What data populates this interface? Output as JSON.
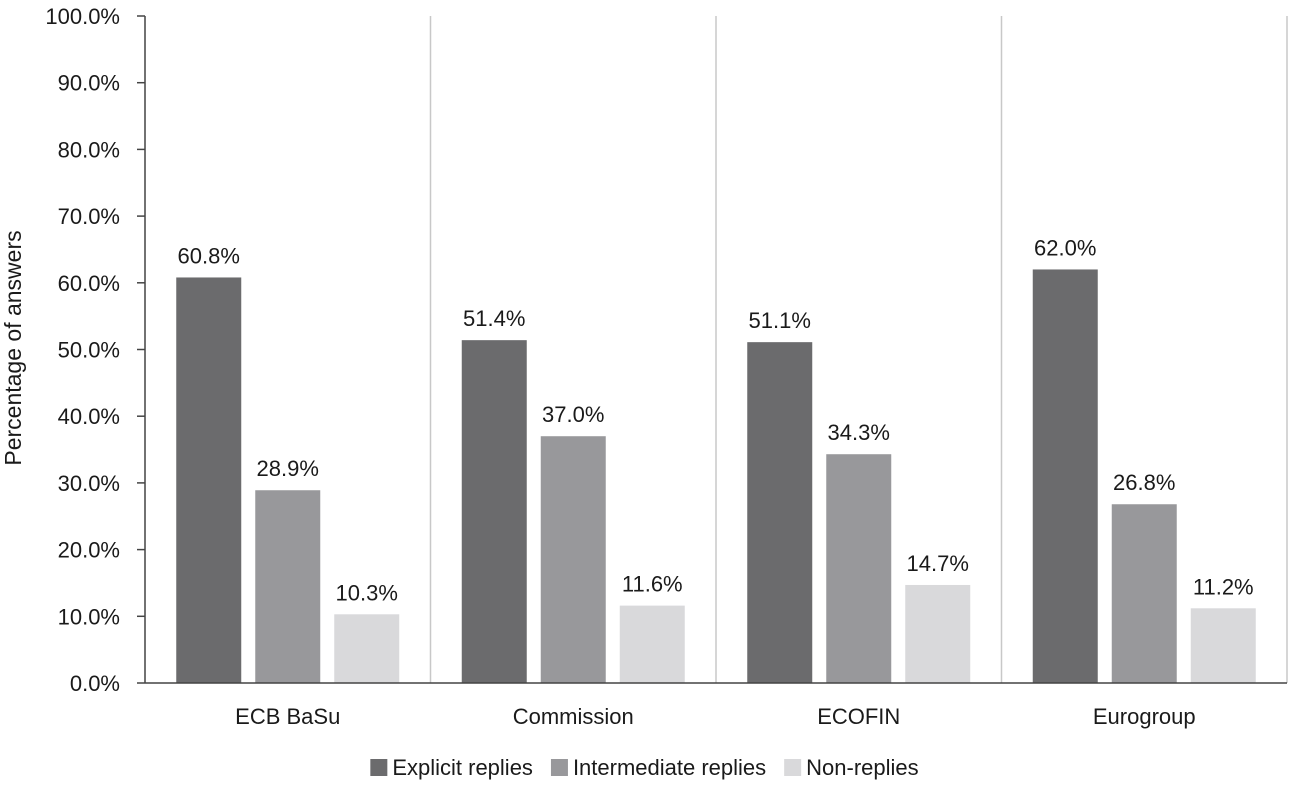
{
  "chart_data": {
    "type": "bar",
    "categories": [
      "ECB BaSu",
      "Commission",
      "ECOFIN",
      "Eurogroup"
    ],
    "series": [
      {
        "name": "Explicit replies",
        "color": "#6b6b6d",
        "values": [
          60.8,
          51.4,
          51.1,
          62.0
        ],
        "labels": [
          "60.8%",
          "51.4%",
          "51.1%",
          "62.0%"
        ]
      },
      {
        "name": "Intermediate replies",
        "color": "#98989b",
        "values": [
          28.9,
          37.0,
          34.3,
          26.8
        ],
        "labels": [
          "28.9%",
          "37.0%",
          "34.3%",
          "26.8%"
        ]
      },
      {
        "name": "Non-replies",
        "color": "#d9d9db",
        "values": [
          10.3,
          11.6,
          14.7,
          11.2
        ],
        "labels": [
          "10.3%",
          "11.6%",
          "14.7%",
          "11.2%"
        ]
      }
    ],
    "ylabel": "Percentage of answers",
    "xlabel": "",
    "ylim": [
      0,
      100
    ],
    "yticks": [
      "0.0%",
      "10.0%",
      "20.0%",
      "30.0%",
      "40.0%",
      "50.0%",
      "60.0%",
      "70.0%",
      "80.0%",
      "90.0%",
      "100.0%"
    ],
    "legend_position": "bottom",
    "category_separators": true
  }
}
